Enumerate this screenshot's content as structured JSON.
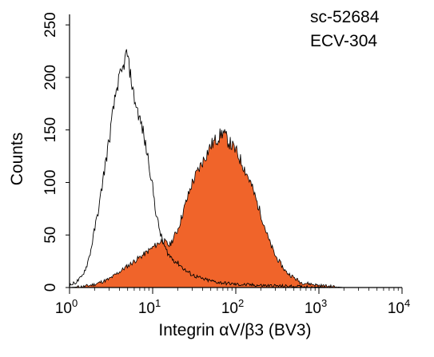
{
  "chart_data": {
    "type": "area",
    "title": "",
    "xlabel": "Integrin αV/β3 (BV3)",
    "ylabel": "Counts",
    "xscale": "log",
    "xlim": [
      1,
      10000
    ],
    "ylim": [
      0,
      260
    ],
    "grid": false,
    "legend": "none",
    "annotations": [
      "sc-52684",
      "ECV-304"
    ],
    "x_ticks": [
      {
        "value": 1,
        "base": "10",
        "exp": "0"
      },
      {
        "value": 10,
        "base": "10",
        "exp": "1"
      },
      {
        "value": 100,
        "base": "10",
        "exp": "2"
      },
      {
        "value": 1000,
        "base": "10",
        "exp": "3"
      },
      {
        "value": 10000,
        "base": "10",
        "exp": "4"
      }
    ],
    "y_ticks": [
      "0",
      "50",
      "100",
      "150",
      "200",
      "250"
    ],
    "series": [
      {
        "style": "outline",
        "color": "#000000",
        "x": [
          1.0,
          1.2,
          1.4,
          1.6,
          1.8,
          2.0,
          2.3,
          2.6,
          3.0,
          3.3,
          3.7,
          4.0,
          4.3,
          4.6,
          4.9,
          5.2,
          5.6,
          6.0,
          6.5,
          7.0,
          7.6,
          8.2,
          9.0,
          10.0,
          11.0,
          12.5,
          14.0,
          16.0,
          18.0,
          21.0,
          25.0,
          30.0,
          40.0,
          60.0,
          100.0,
          200.0,
          500.0,
          1500.0,
          10000.0
        ],
        "y": [
          2,
          5,
          10,
          20,
          35,
          55,
          80,
          110,
          140,
          165,
          190,
          200,
          205,
          215,
          225,
          210,
          195,
          180,
          170,
          160,
          150,
          135,
          120,
          95,
          70,
          50,
          38,
          30,
          26,
          22,
          16,
          12,
          8,
          5,
          3,
          2,
          1,
          0,
          0
        ]
      },
      {
        "style": "filled",
        "color": "#f0642a",
        "x": [
          1.0,
          1.5,
          2.0,
          3.0,
          4.0,
          6.0,
          8.0,
          10.0,
          13.0,
          16.0,
          20.0,
          25.0,
          30.0,
          40.0,
          50.0,
          60.0,
          70.0,
          80.0,
          100.0,
          120.0,
          150.0,
          200.0,
          250.0,
          300.0,
          400.0,
          600.0,
          1000.0,
          2000.0,
          10000.0
        ],
        "y": [
          0,
          1,
          3,
          8,
          15,
          25,
          32,
          38,
          45,
          40,
          55,
          80,
          100,
          120,
          135,
          142,
          148,
          140,
          130,
          118,
          100,
          70,
          45,
          30,
          15,
          5,
          2,
          0,
          0
        ]
      }
    ]
  }
}
